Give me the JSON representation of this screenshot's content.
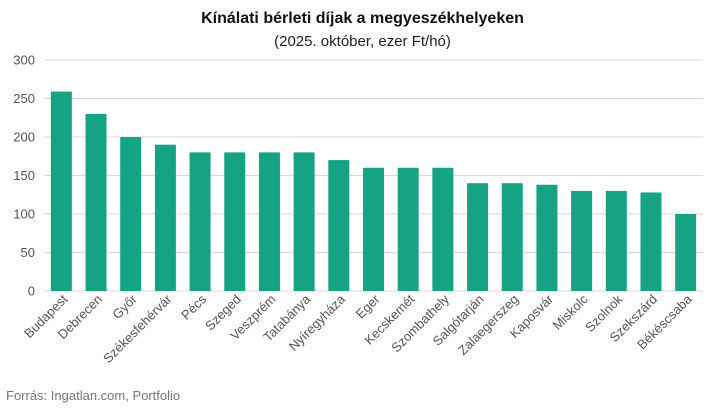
{
  "chart_data": {
    "type": "bar",
    "title": "Kínálati bérleti díjak a megyeszékhelyeken",
    "subtitle": "(2025. október, ezer Ft/hó)",
    "categories": [
      "Budapest",
      "Debrecen",
      "Győr",
      "Székesfehérvár",
      "Pécs",
      "Szeged",
      "Veszprém",
      "Tatabánya",
      "Nyíregyháza",
      "Eger",
      "Kecskemét",
      "Szombathely",
      "Salgótarján",
      "Zalaegerszeg",
      "Kaposvár",
      "Miskolc",
      "Szolnok",
      "Szekszárd",
      "Békéscsaba"
    ],
    "values": [
      259,
      230,
      200,
      190,
      180,
      180,
      180,
      180,
      170,
      160,
      160,
      160,
      140,
      140,
      138,
      130,
      130,
      128,
      100
    ],
    "ylim": [
      0,
      300
    ],
    "yticks": [
      0,
      50,
      100,
      150,
      200,
      250,
      300
    ],
    "grid": true,
    "bar_color": "#16a383",
    "grid_color": "#d9d9d9"
  },
  "source": "Forrás: Ingatlan.com, Portfolio"
}
